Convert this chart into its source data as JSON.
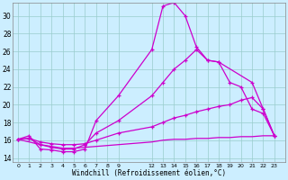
{
  "xlabel": "Windchill (Refroidissement éolien,°C)",
  "bg_color": "#cceeff",
  "line_color": "#cc00cc",
  "grid_color": "#99cccc",
  "xtick_labels": [
    "0",
    "1",
    "2",
    "3",
    "4",
    "5",
    "6",
    "7",
    "8",
    "9",
    "12",
    "13",
    "14",
    "15",
    "16",
    "17",
    "18",
    "19",
    "20",
    "21",
    "22",
    "23"
  ],
  "xtick_positions": [
    0,
    1,
    2,
    3,
    4,
    5,
    6,
    7,
    8,
    9,
    12,
    13,
    14,
    15,
    16,
    17,
    18,
    19,
    20,
    21,
    22,
    23
  ],
  "yticks": [
    14,
    16,
    18,
    20,
    22,
    24,
    26,
    28,
    30
  ],
  "ylim": [
    13.5,
    31.5
  ],
  "xlim": [
    -0.5,
    24.0
  ],
  "series": [
    {
      "x": [
        0,
        1,
        2,
        3,
        4,
        5,
        6,
        7,
        9,
        12,
        13,
        14,
        15,
        16,
        17,
        18,
        21,
        22,
        23
      ],
      "y": [
        16.1,
        16.5,
        15.0,
        14.9,
        14.7,
        14.7,
        15.0,
        18.2,
        21.0,
        26.2,
        31.1,
        31.5,
        30.0,
        26.5,
        25.0,
        24.8,
        22.5,
        19.5,
        16.5
      ],
      "marker": "+"
    },
    {
      "x": [
        0,
        1,
        2,
        3,
        4,
        5,
        6,
        7,
        9,
        12,
        13,
        14,
        15,
        16,
        17,
        18,
        19,
        20,
        21,
        22,
        23
      ],
      "y": [
        16.1,
        16.2,
        15.5,
        15.2,
        15.0,
        15.0,
        15.5,
        16.8,
        18.2,
        21.0,
        22.5,
        24.0,
        25.0,
        26.2,
        25.0,
        24.8,
        22.5,
        22.0,
        19.5,
        19.0,
        16.5
      ],
      "marker": "+"
    },
    {
      "x": [
        0,
        1,
        2,
        3,
        4,
        5,
        6,
        7,
        9,
        12,
        13,
        14,
        15,
        16,
        17,
        18,
        19,
        20,
        21,
        22,
        23
      ],
      "y": [
        16.1,
        16.2,
        15.8,
        15.6,
        15.5,
        15.5,
        15.6,
        16.0,
        16.8,
        17.5,
        18.0,
        18.5,
        18.8,
        19.2,
        19.5,
        19.8,
        20.0,
        20.5,
        20.8,
        19.5,
        16.5
      ],
      "marker": "+"
    },
    {
      "x": [
        0,
        1,
        2,
        3,
        4,
        5,
        6,
        7,
        9,
        12,
        13,
        14,
        15,
        16,
        17,
        18,
        19,
        20,
        21,
        22,
        23
      ],
      "y": [
        16.1,
        15.8,
        15.5,
        15.3,
        15.1,
        15.1,
        15.2,
        15.3,
        15.5,
        15.8,
        16.0,
        16.1,
        16.1,
        16.2,
        16.2,
        16.3,
        16.3,
        16.4,
        16.4,
        16.5,
        16.5
      ],
      "marker": null
    }
  ]
}
